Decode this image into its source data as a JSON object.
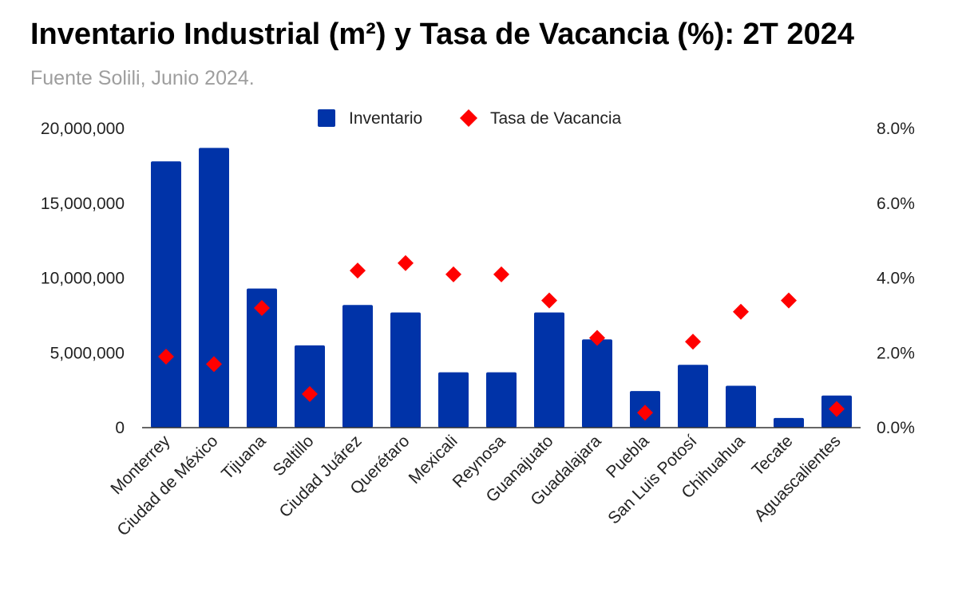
{
  "chart_data": {
    "type": "bar",
    "title": "Inventario Industrial (m²) y Tasa de Vacancia (%): 2T 2024",
    "subtitle": "Fuente Solili, Junio 2024.",
    "categories": [
      "Monterrey",
      "Ciudad de México",
      "Tijuana",
      "Saltillo",
      "Ciudad Juárez",
      "Querétaro",
      "Mexicali",
      "Reynosa",
      "Guanajuato",
      "Guadalajara",
      "Puebla",
      "San Luis Potosí",
      "Chihuahua",
      "Tecate",
      "Aguascalientes"
    ],
    "series": [
      {
        "name": "Inventario",
        "type": "bar",
        "axis": "left",
        "color": "#0033a8",
        "values": [
          17800000,
          18700000,
          9300000,
          5500000,
          8200000,
          7700000,
          3700000,
          3700000,
          7700000,
          5900000,
          2450000,
          4200000,
          2800000,
          650000,
          2150000
        ]
      },
      {
        "name": "Tasa de Vacancia",
        "type": "scatter",
        "marker": "diamond",
        "axis": "right",
        "color": "#ff0000",
        "values": [
          1.9,
          1.7,
          3.2,
          0.9,
          4.2,
          4.4,
          4.1,
          4.1,
          3.4,
          2.4,
          0.4,
          2.3,
          3.1,
          3.4,
          0.5
        ]
      }
    ],
    "y_left": {
      "ylim": [
        0,
        20000000
      ],
      "ticks": [
        0,
        5000000,
        10000000,
        15000000,
        20000000
      ],
      "tick_labels": [
        "0",
        "5,000,000",
        "10,000,000",
        "15,000,000",
        "20,000,000"
      ]
    },
    "y_right": {
      "ylim": [
        0,
        8
      ],
      "ticks": [
        0,
        2,
        4,
        6,
        8
      ],
      "tick_labels": [
        "0.0%",
        "2.0%",
        "4.0%",
        "6.0%",
        "8.0%"
      ]
    },
    "legend": {
      "position": "top",
      "items": [
        "Inventario",
        "Tasa de Vacancia"
      ]
    },
    "grid": false,
    "xlabel": "",
    "ylabel": ""
  }
}
